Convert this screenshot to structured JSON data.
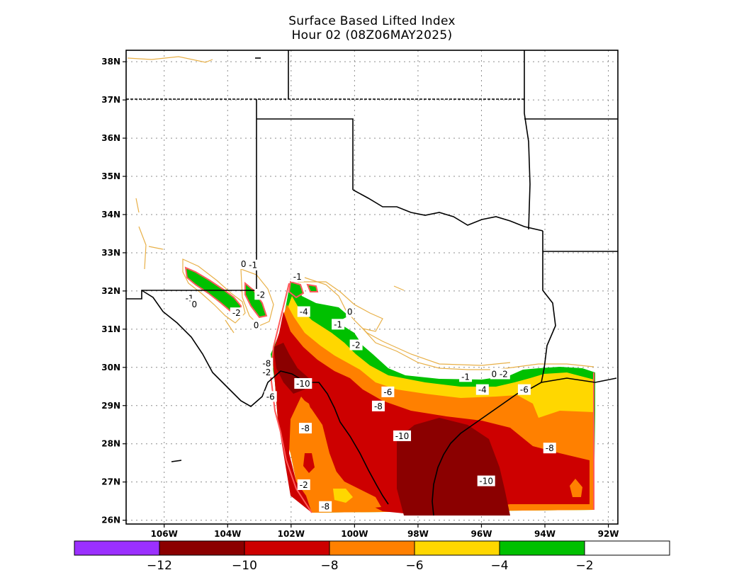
{
  "title": {
    "line1": "Surface Based Lifted Index",
    "line2": "Hour 02 (08Z06MAY2025)"
  },
  "map": {
    "lon_range": [
      -107.2,
      -91.7
    ],
    "lat_range": [
      25.9,
      38.3
    ],
    "lat_ticks": [
      {
        "value": 26,
        "label": "26N"
      },
      {
        "value": 27,
        "label": "27N"
      },
      {
        "value": 28,
        "label": "28N"
      },
      {
        "value": 29,
        "label": "29N"
      },
      {
        "value": 30,
        "label": "30N"
      },
      {
        "value": 31,
        "label": "31N"
      },
      {
        "value": 32,
        "label": "32N"
      },
      {
        "value": 33,
        "label": "33N"
      },
      {
        "value": 34,
        "label": "34N"
      },
      {
        "value": 35,
        "label": "35N"
      },
      {
        "value": 36,
        "label": "36N"
      },
      {
        "value": 37,
        "label": "37N"
      },
      {
        "value": 38,
        "label": "38N"
      }
    ],
    "lon_ticks": [
      {
        "value": -106,
        "label": "106W"
      },
      {
        "value": -104,
        "label": "104W"
      },
      {
        "value": -102,
        "label": "102W"
      },
      {
        "value": -100,
        "label": "100W"
      },
      {
        "value": -98,
        "label": "98W"
      },
      {
        "value": -96,
        "label": "96W"
      },
      {
        "value": -94,
        "label": "94W"
      },
      {
        "value": -92,
        "label": "92W"
      }
    ],
    "gridlines": true,
    "colors": {
      "lt_minus12": "#9b30ff",
      "minus12_to_minus10": "#8b0000",
      "minus10_to_minus8": "#cd0000",
      "minus8_to_minus6": "#ff8000",
      "minus6_to_minus4": "#ffd700",
      "minus4_to_minus2": "#00c000",
      "gt_minus2": "#ffffff",
      "positive_contour": "#e8b048",
      "edge_contour": "#ff5a5a"
    },
    "contour_labels": [
      {
        "text": "0",
        "lon": -103.5,
        "lat": 32.7
      },
      {
        "text": "-1",
        "lon": -103.2,
        "lat": 32.67
      },
      {
        "text": "-1",
        "lon": -101.8,
        "lat": 32.37
      },
      {
        "text": "-1",
        "lon": -105.2,
        "lat": 31.8
      },
      {
        "text": "0",
        "lon": -105.05,
        "lat": 31.65
      },
      {
        "text": "-2",
        "lon": -102.95,
        "lat": 31.9
      },
      {
        "text": "-2",
        "lon": -103.72,
        "lat": 31.42
      },
      {
        "text": "0",
        "lon": -103.1,
        "lat": 31.1
      },
      {
        "text": "-4",
        "lon": -101.6,
        "lat": 31.45
      },
      {
        "text": "0",
        "lon": -100.15,
        "lat": 31.45
      },
      {
        "text": "-1",
        "lon": -100.52,
        "lat": 31.12
      },
      {
        "text": "-2",
        "lon": -99.95,
        "lat": 30.58
      },
      {
        "text": "-8",
        "lon": -102.77,
        "lat": 30.1
      },
      {
        "text": "-2",
        "lon": -102.77,
        "lat": 29.87
      },
      {
        "text": "-10",
        "lon": -101.62,
        "lat": 29.57
      },
      {
        "text": "-6",
        "lon": -102.65,
        "lat": 29.23
      },
      {
        "text": "-6",
        "lon": -98.95,
        "lat": 29.35
      },
      {
        "text": "-8",
        "lon": -99.25,
        "lat": 28.98
      },
      {
        "text": "-1",
        "lon": -96.5,
        "lat": 29.75
      },
      {
        "text": "0",
        "lon": -95.6,
        "lat": 29.82
      },
      {
        "text": "-2",
        "lon": -95.3,
        "lat": 29.82
      },
      {
        "text": "-4",
        "lon": -95.97,
        "lat": 29.41
      },
      {
        "text": "-6",
        "lon": -94.65,
        "lat": 29.41
      },
      {
        "text": "-8",
        "lon": -101.55,
        "lat": 28.4
      },
      {
        "text": "-10",
        "lon": -98.5,
        "lat": 28.2
      },
      {
        "text": "-8",
        "lon": -93.85,
        "lat": 27.88
      },
      {
        "text": "-2",
        "lon": -101.6,
        "lat": 26.92
      },
      {
        "text": "-10",
        "lon": -95.85,
        "lat": 27.02
      },
      {
        "text": "-8",
        "lon": -100.92,
        "lat": 26.35
      }
    ]
  },
  "colorbar": {
    "labels": [
      "−12",
      "−10",
      "−8",
      "−6",
      "−4",
      "−2"
    ],
    "bins": [
      "#9b30ff",
      "#8b0000",
      "#cd0000",
      "#ff8000",
      "#ffd700",
      "#00c000",
      "#ffffff"
    ]
  }
}
